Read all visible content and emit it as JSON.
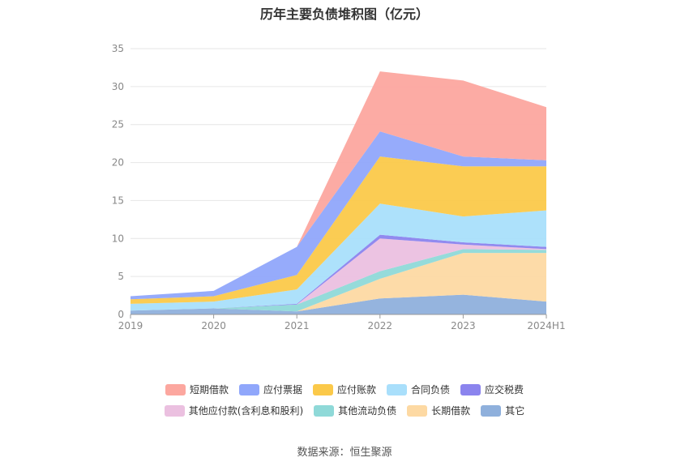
{
  "title": "历年主要负债堆积图（亿元）",
  "source": "数据来源：恒生聚源",
  "chart_data": {
    "type": "area",
    "stacked": true,
    "categories": [
      "2019",
      "2020",
      "2021",
      "2022",
      "2023",
      "2024H1"
    ],
    "ylim": [
      0,
      35
    ],
    "yticks": [
      0,
      5,
      10,
      15,
      20,
      25,
      30,
      35
    ],
    "grid": true,
    "legend_position": "bottom",
    "series": [
      {
        "name": "其它",
        "color": "#8fb0dc",
        "values": [
          0.5,
          0.8,
          0.4,
          2.1,
          2.6,
          1.7
        ]
      },
      {
        "name": "长期借款",
        "color": "#fdd9a3",
        "values": [
          0.0,
          0.0,
          0.0,
          2.6,
          5.5,
          6.4
        ]
      },
      {
        "name": "其他流动负债",
        "color": "#8fd9d8",
        "values": [
          0.0,
          0.0,
          0.9,
          1.0,
          0.5,
          0.4
        ]
      },
      {
        "name": "其他应付款(含利息和股利)",
        "color": "#ebc0e0",
        "values": [
          0.0,
          0.0,
          0.0,
          4.3,
          0.6,
          0.1
        ]
      },
      {
        "name": "应交税费",
        "color": "#8b84ee",
        "values": [
          0.0,
          0.0,
          0.1,
          0.5,
          0.3,
          0.3
        ]
      },
      {
        "name": "合同负债",
        "color": "#a9dffb",
        "values": [
          0.9,
          0.9,
          1.9,
          4.1,
          3.4,
          4.8
        ]
      },
      {
        "name": "应付账款",
        "color": "#fbc94a",
        "values": [
          0.6,
          0.7,
          1.9,
          6.2,
          6.6,
          5.8
        ]
      },
      {
        "name": "应付票据",
        "color": "#90a7fb",
        "values": [
          0.4,
          0.7,
          3.7,
          3.3,
          1.3,
          0.8
        ]
      },
      {
        "name": "短期借款",
        "color": "#fca79f",
        "values": [
          0.0,
          0.0,
          0.0,
          7.9,
          10.0,
          7.0
        ]
      }
    ],
    "legend_order": [
      "短期借款",
      "应付票据",
      "应付账款",
      "合同负债",
      "应交税费",
      "其他应付款(含利息和股利)",
      "其他流动负债",
      "长期借款",
      "其它"
    ]
  }
}
